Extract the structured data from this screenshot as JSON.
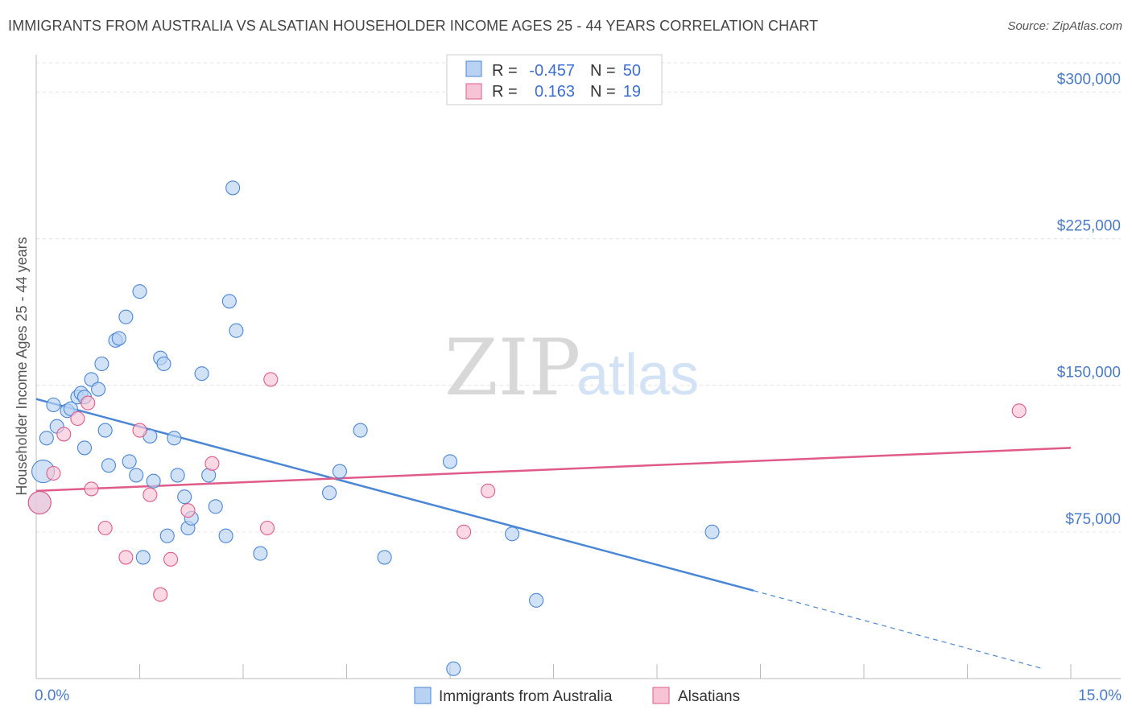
{
  "header": {
    "title": "IMMIGRANTS FROM AUSTRALIA VS ALSATIAN HOUSEHOLDER INCOME AGES 25 - 44 YEARS CORRELATION CHART",
    "source": "Source: ZipAtlas.com"
  },
  "watermark": {
    "zip": "ZIP",
    "atlas": "atlas"
  },
  "colors": {
    "blue": "#4a86d6",
    "pink": "#e05a8a",
    "blue_fill": "#b9d2f3",
    "pink_fill": "#f7c4d5"
  },
  "chart_data": {
    "type": "scatter",
    "title": "IMMIGRANTS FROM AUSTRALIA VS ALSATIAN HOUSEHOLDER INCOME AGES 25 - 44 YEARS CORRELATION CHART",
    "ylabel": "Householder Income Ages 25 - 44 years",
    "xlim": [
      0,
      15
    ],
    "ylim": [
      0,
      315000
    ],
    "x_tick_labels": [
      "0.0%",
      "15.0%"
    ],
    "y_ticks": [
      75000,
      150000,
      225000,
      300000
    ],
    "y_tick_labels": [
      "$75,000",
      "$150,000",
      "$225,000",
      "$300,000"
    ],
    "legend": [
      {
        "r_label": "R =",
        "r_value": "-0.457",
        "n_label": "N =",
        "n_value": "50"
      },
      {
        "r_label": "R =",
        "r_value": "0.163",
        "n_label": "N =",
        "n_value": "19"
      }
    ],
    "series": [
      {
        "name": "Immigrants from Australia",
        "color": "#4a86d6",
        "trend": {
          "x0": 0,
          "y0": 143000,
          "x1": 10.4,
          "y1": 45000,
          "dash_x1": 14.6,
          "dash_y1": 5000
        },
        "points": [
          [
            0.05,
            90000,
            1
          ],
          [
            0.1,
            106000,
            1
          ],
          [
            0.15,
            123000,
            0
          ],
          [
            0.25,
            140000,
            0
          ],
          [
            0.3,
            129000,
            0
          ],
          [
            0.45,
            137000,
            0
          ],
          [
            0.5,
            138000,
            0
          ],
          [
            0.6,
            144000,
            0
          ],
          [
            0.65,
            146000,
            0
          ],
          [
            0.7,
            144000,
            0
          ],
          [
            0.7,
            118000,
            0
          ],
          [
            0.8,
            153000,
            0
          ],
          [
            0.9,
            148000,
            0
          ],
          [
            0.95,
            161000,
            0
          ],
          [
            1.0,
            127000,
            0
          ],
          [
            1.05,
            109000,
            0
          ],
          [
            1.15,
            173000,
            0
          ],
          [
            1.2,
            174000,
            0
          ],
          [
            1.3,
            185000,
            0
          ],
          [
            1.35,
            111000,
            0
          ],
          [
            1.45,
            104000,
            0
          ],
          [
            1.5,
            198000,
            0
          ],
          [
            1.55,
            62000,
            0
          ],
          [
            1.65,
            124000,
            0
          ],
          [
            1.7,
            101000,
            0
          ],
          [
            1.8,
            164000,
            0
          ],
          [
            1.85,
            161000,
            0
          ],
          [
            1.9,
            73000,
            0
          ],
          [
            2.0,
            123000,
            0
          ],
          [
            2.05,
            104000,
            0
          ],
          [
            2.15,
            93000,
            0
          ],
          [
            2.2,
            77000,
            0
          ],
          [
            2.25,
            82000,
            0
          ],
          [
            2.4,
            156000,
            0
          ],
          [
            2.5,
            104000,
            0
          ],
          [
            2.6,
            88000,
            0
          ],
          [
            2.75,
            73000,
            0
          ],
          [
            2.8,
            193000,
            0
          ],
          [
            2.85,
            251000,
            0
          ],
          [
            2.9,
            178000,
            0
          ],
          [
            3.25,
            64000,
            0
          ],
          [
            4.25,
            95000,
            0
          ],
          [
            4.4,
            106000,
            0
          ],
          [
            4.7,
            127000,
            0
          ],
          [
            5.05,
            62000,
            0
          ],
          [
            6.0,
            111000,
            0
          ],
          [
            6.05,
            5000,
            0
          ],
          [
            6.9,
            74000,
            0
          ],
          [
            7.25,
            40000,
            0
          ],
          [
            9.8,
            75000,
            0
          ]
        ]
      },
      {
        "name": "Alsatians",
        "color": "#e05a8a",
        "trend": {
          "x0": 0,
          "y0": 96000,
          "x1": 15,
          "y1": 118000
        },
        "points": [
          [
            0.05,
            90000,
            1
          ],
          [
            0.25,
            105000,
            0
          ],
          [
            0.4,
            125000,
            0
          ],
          [
            0.6,
            133000,
            0
          ],
          [
            0.75,
            141000,
            0
          ],
          [
            0.8,
            97000,
            0
          ],
          [
            1.0,
            77000,
            0
          ],
          [
            1.3,
            62000,
            0
          ],
          [
            1.5,
            127000,
            0
          ],
          [
            1.65,
            94000,
            0
          ],
          [
            1.8,
            43000,
            0
          ],
          [
            1.95,
            61000,
            0
          ],
          [
            2.2,
            86000,
            0
          ],
          [
            2.55,
            110000,
            0
          ],
          [
            3.35,
            77000,
            0
          ],
          [
            3.4,
            153000,
            0
          ],
          [
            6.2,
            75000,
            0
          ],
          [
            6.55,
            96000,
            0
          ],
          [
            14.25,
            137000,
            0
          ]
        ]
      }
    ]
  }
}
